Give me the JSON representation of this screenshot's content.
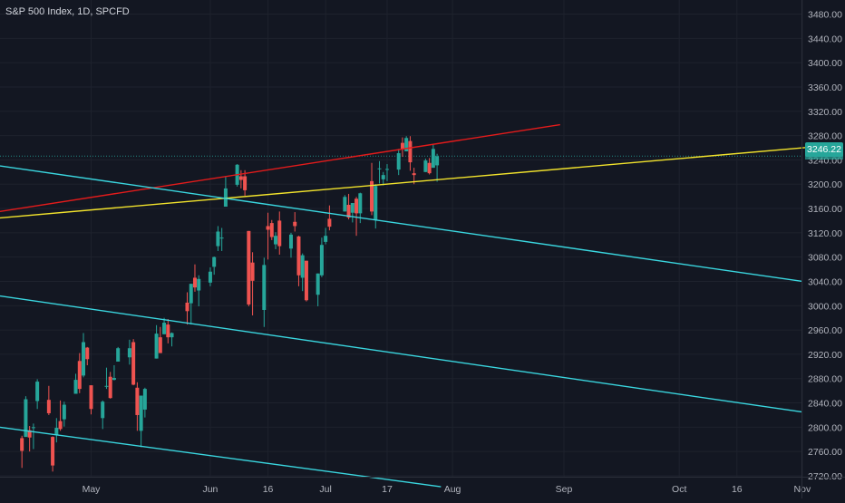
{
  "header": {
    "title": "S&P 500 Index, 1D, SPCFD"
  },
  "price_axis": {
    "last_price_label": "3246.22"
  },
  "colors": {
    "background": "#131722",
    "grid": "#1e222d",
    "up": "#26a69a",
    "down": "#ef5350",
    "red_line": "#e31b1b",
    "yellow_line": "#f2e32c",
    "cyan_line": "#3ad6df",
    "axis_text": "#b2b5be"
  },
  "chart_data": {
    "type": "candlestick",
    "title": "S&P 500 Index, 1D, SPCFD",
    "ylim": [
      2700,
      3500
    ],
    "y_ticks": [
      "2720.00",
      "2760.00",
      "2800.00",
      "2840.00",
      "2880.00",
      "2920.00",
      "2960.00",
      "3000.00",
      "3040.00",
      "3080.00",
      "3120.00",
      "3160.00",
      "3200.00",
      "3240.00",
      "3280.00",
      "3320.00",
      "3360.00",
      "3400.00",
      "3440.00",
      "3480.00"
    ],
    "x_ticks": [
      {
        "label": "May",
        "date": "2020-05-01"
      },
      {
        "label": "Jun",
        "date": "2020-06-01"
      },
      {
        "label": "16",
        "date": "2020-06-16"
      },
      {
        "label": "Jul",
        "date": "2020-07-01"
      },
      {
        "label": "17",
        "date": "2020-07-17"
      },
      {
        "label": "Aug",
        "date": "2020-08-03"
      },
      {
        "label": "Sep",
        "date": "2020-09-01"
      },
      {
        "label": "Oct",
        "date": "2020-10-01"
      },
      {
        "label": "16",
        "date": "2020-10-16"
      },
      {
        "label": "Nov",
        "date": "2020-11-02"
      }
    ],
    "last_price": 3246.22,
    "candles": [
      [
        "2020-04-13",
        2782,
        2786,
        2733,
        2761
      ],
      [
        "2020-04-14",
        2784,
        2851,
        2784,
        2846
      ],
      [
        "2020-04-15",
        2795,
        2802,
        2760,
        2783
      ],
      [
        "2020-04-16",
        2799,
        2806,
        2764,
        2800
      ],
      [
        "2020-04-17",
        2843,
        2879,
        2830,
        2875
      ],
      [
        "2020-04-20",
        2845,
        2868,
        2820,
        2823
      ],
      [
        "2020-04-21",
        2784,
        2785,
        2727,
        2737
      ],
      [
        "2020-04-22",
        2787,
        2815,
        2775,
        2799
      ],
      [
        "2020-04-23",
        2810,
        2844,
        2794,
        2797
      ],
      [
        "2020-04-24",
        2813,
        2842,
        2801,
        2837
      ],
      [
        "2020-04-27",
        2855,
        2888,
        2855,
        2878
      ],
      [
        "2020-04-28",
        2909,
        2922,
        2856,
        2863
      ],
      [
        "2020-04-29",
        2885,
        2955,
        2882,
        2940
      ],
      [
        "2020-04-30",
        2931,
        2932,
        2902,
        2912
      ],
      [
        "2020-05-01",
        2869,
        2869,
        2821,
        2830
      ],
      [
        "2020-05-04",
        2815,
        2844,
        2797,
        2842
      ],
      [
        "2020-05-05",
        2868,
        2898,
        2863,
        2868
      ],
      [
        "2020-05-06",
        2883,
        2891,
        2847,
        2848
      ],
      [
        "2020-05-07",
        2878,
        2902,
        2877,
        2881
      ],
      [
        "2020-05-08",
        2908,
        2932,
        2908,
        2930
      ],
      [
        "2020-05-11",
        2915,
        2944,
        2903,
        2930
      ],
      [
        "2020-05-12",
        2940,
        2945,
        2869,
        2870
      ],
      [
        "2020-05-13",
        2865,
        2874,
        2794,
        2820
      ],
      [
        "2020-05-14",
        2794,
        2852,
        2767,
        2852
      ],
      [
        "2020-05-15",
        2829,
        2865,
        2816,
        2863
      ],
      [
        "2020-05-18",
        2913,
        2968,
        2913,
        2954
      ],
      [
        "2020-05-19",
        2948,
        2965,
        2922,
        2922
      ],
      [
        "2020-05-20",
        2953,
        2980,
        2953,
        2972
      ],
      [
        "2020-05-21",
        2969,
        2978,
        2938,
        2948
      ],
      [
        "2020-05-22",
        2948,
        2956,
        2933,
        2955
      ],
      [
        "2020-05-26",
        3005,
        3022,
        2969,
        2991
      ],
      [
        "2020-05-27",
        3004,
        3036,
        2969,
        3036
      ],
      [
        "2020-05-28",
        3046,
        3068,
        3023,
        3030
      ],
      [
        "2020-05-29",
        3025,
        3050,
        2999,
        3044
      ],
      [
        "2020-06-01",
        3038,
        3063,
        3032,
        3056
      ],
      [
        "2020-06-02",
        3064,
        3081,
        3051,
        3080
      ],
      [
        "2020-06-03",
        3098,
        3131,
        3090,
        3122
      ],
      [
        "2020-06-04",
        3112,
        3128,
        3090,
        3112
      ],
      [
        "2020-06-05",
        3163,
        3212,
        3163,
        3193
      ],
      [
        "2020-06-08",
        3199,
        3233,
        3196,
        3232
      ],
      [
        "2020-06-09",
        3213,
        3223,
        3193,
        3207
      ],
      [
        "2020-06-10",
        3213,
        3223,
        3181,
        3190
      ],
      [
        "2020-06-11",
        3123,
        3123,
        2999,
        3002
      ],
      [
        "2020-06-12",
        3071,
        3088,
        2984,
        3041
      ],
      [
        "2020-06-15",
        2993,
        3079,
        2965,
        3067
      ],
      [
        "2020-06-16",
        3131,
        3153,
        3076,
        3125
      ],
      [
        "2020-06-17",
        3136,
        3141,
        3108,
        3113
      ],
      [
        "2020-06-18",
        3101,
        3121,
        3093,
        3115
      ],
      [
        "2020-06-19",
        3140,
        3155,
        3084,
        3098
      ],
      [
        "2020-06-22",
        3094,
        3120,
        3079,
        3117
      ],
      [
        "2020-06-23",
        3138,
        3154,
        3122,
        3131
      ],
      [
        "2020-06-24",
        3114,
        3115,
        3032,
        3050
      ],
      [
        "2020-06-25",
        3046,
        3086,
        3024,
        3083
      ],
      [
        "2020-06-26",
        3074,
        3074,
        3007,
        3009
      ],
      [
        "2020-06-29",
        3018,
        3053,
        2999,
        3053
      ],
      [
        "2020-06-30",
        3050,
        3112,
        3047,
        3100
      ],
      [
        "2020-07-01",
        3105,
        3128,
        3101,
        3115
      ],
      [
        "2020-07-02",
        3143,
        3165,
        3124,
        3130
      ],
      [
        "2020-07-06",
        3155,
        3182,
        3155,
        3179
      ],
      [
        "2020-07-07",
        3166,
        3184,
        3142,
        3145
      ],
      [
        "2020-07-08",
        3153,
        3167,
        3137,
        3169
      ],
      [
        "2020-07-09",
        3176,
        3179,
        3115,
        3152
      ],
      [
        "2020-07-10",
        3152,
        3186,
        3136,
        3185
      ],
      [
        "2020-07-13",
        3205,
        3235,
        3149,
        3155
      ],
      [
        "2020-07-14",
        3141,
        3200,
        3127,
        3197
      ],
      [
        "2020-07-15",
        3225,
        3238,
        3201,
        3226
      ],
      [
        "2020-07-16",
        3208,
        3220,
        3198,
        3215
      ],
      [
        "2020-07-17",
        3224,
        3233,
        3205,
        3225
      ],
      [
        "2020-07-20",
        3224,
        3258,
        3215,
        3251
      ],
      [
        "2020-07-21",
        3268,
        3277,
        3245,
        3257
      ],
      [
        "2020-07-22",
        3254,
        3279,
        3254,
        3276
      ],
      [
        "2020-07-23",
        3271,
        3279,
        3222,
        3236
      ],
      [
        "2020-07-24",
        3218,
        3227,
        3200,
        3215
      ],
      [
        "2020-07-27",
        3220,
        3242,
        3220,
        3239
      ],
      [
        "2020-07-28",
        3235,
        3243,
        3216,
        3218
      ],
      [
        "2020-07-29",
        3227,
        3265,
        3227,
        3258
      ],
      [
        "2020-07-30",
        3231,
        3250,
        3204,
        3246
      ]
    ],
    "trendlines": [
      {
        "color": "red",
        "from": [
          "2020-03-23",
          3140
        ],
        "to": [
          "2020-08-31",
          3298
        ]
      },
      {
        "color": "yellow",
        "from": [
          "2020-03-23",
          3136
        ],
        "to": [
          "2020-11-06",
          3262
        ]
      },
      {
        "color": "cyan",
        "from": [
          "2020-03-23",
          3244
        ],
        "to": [
          "2020-11-02",
          3040
        ]
      },
      {
        "color": "cyan",
        "from": [
          "2020-03-23",
          3030
        ],
        "to": [
          "2020-11-02",
          2825
        ]
      },
      {
        "color": "cyan",
        "from": [
          "2020-03-23",
          2813
        ],
        "to": [
          "2020-07-31",
          2702
        ]
      }
    ]
  }
}
